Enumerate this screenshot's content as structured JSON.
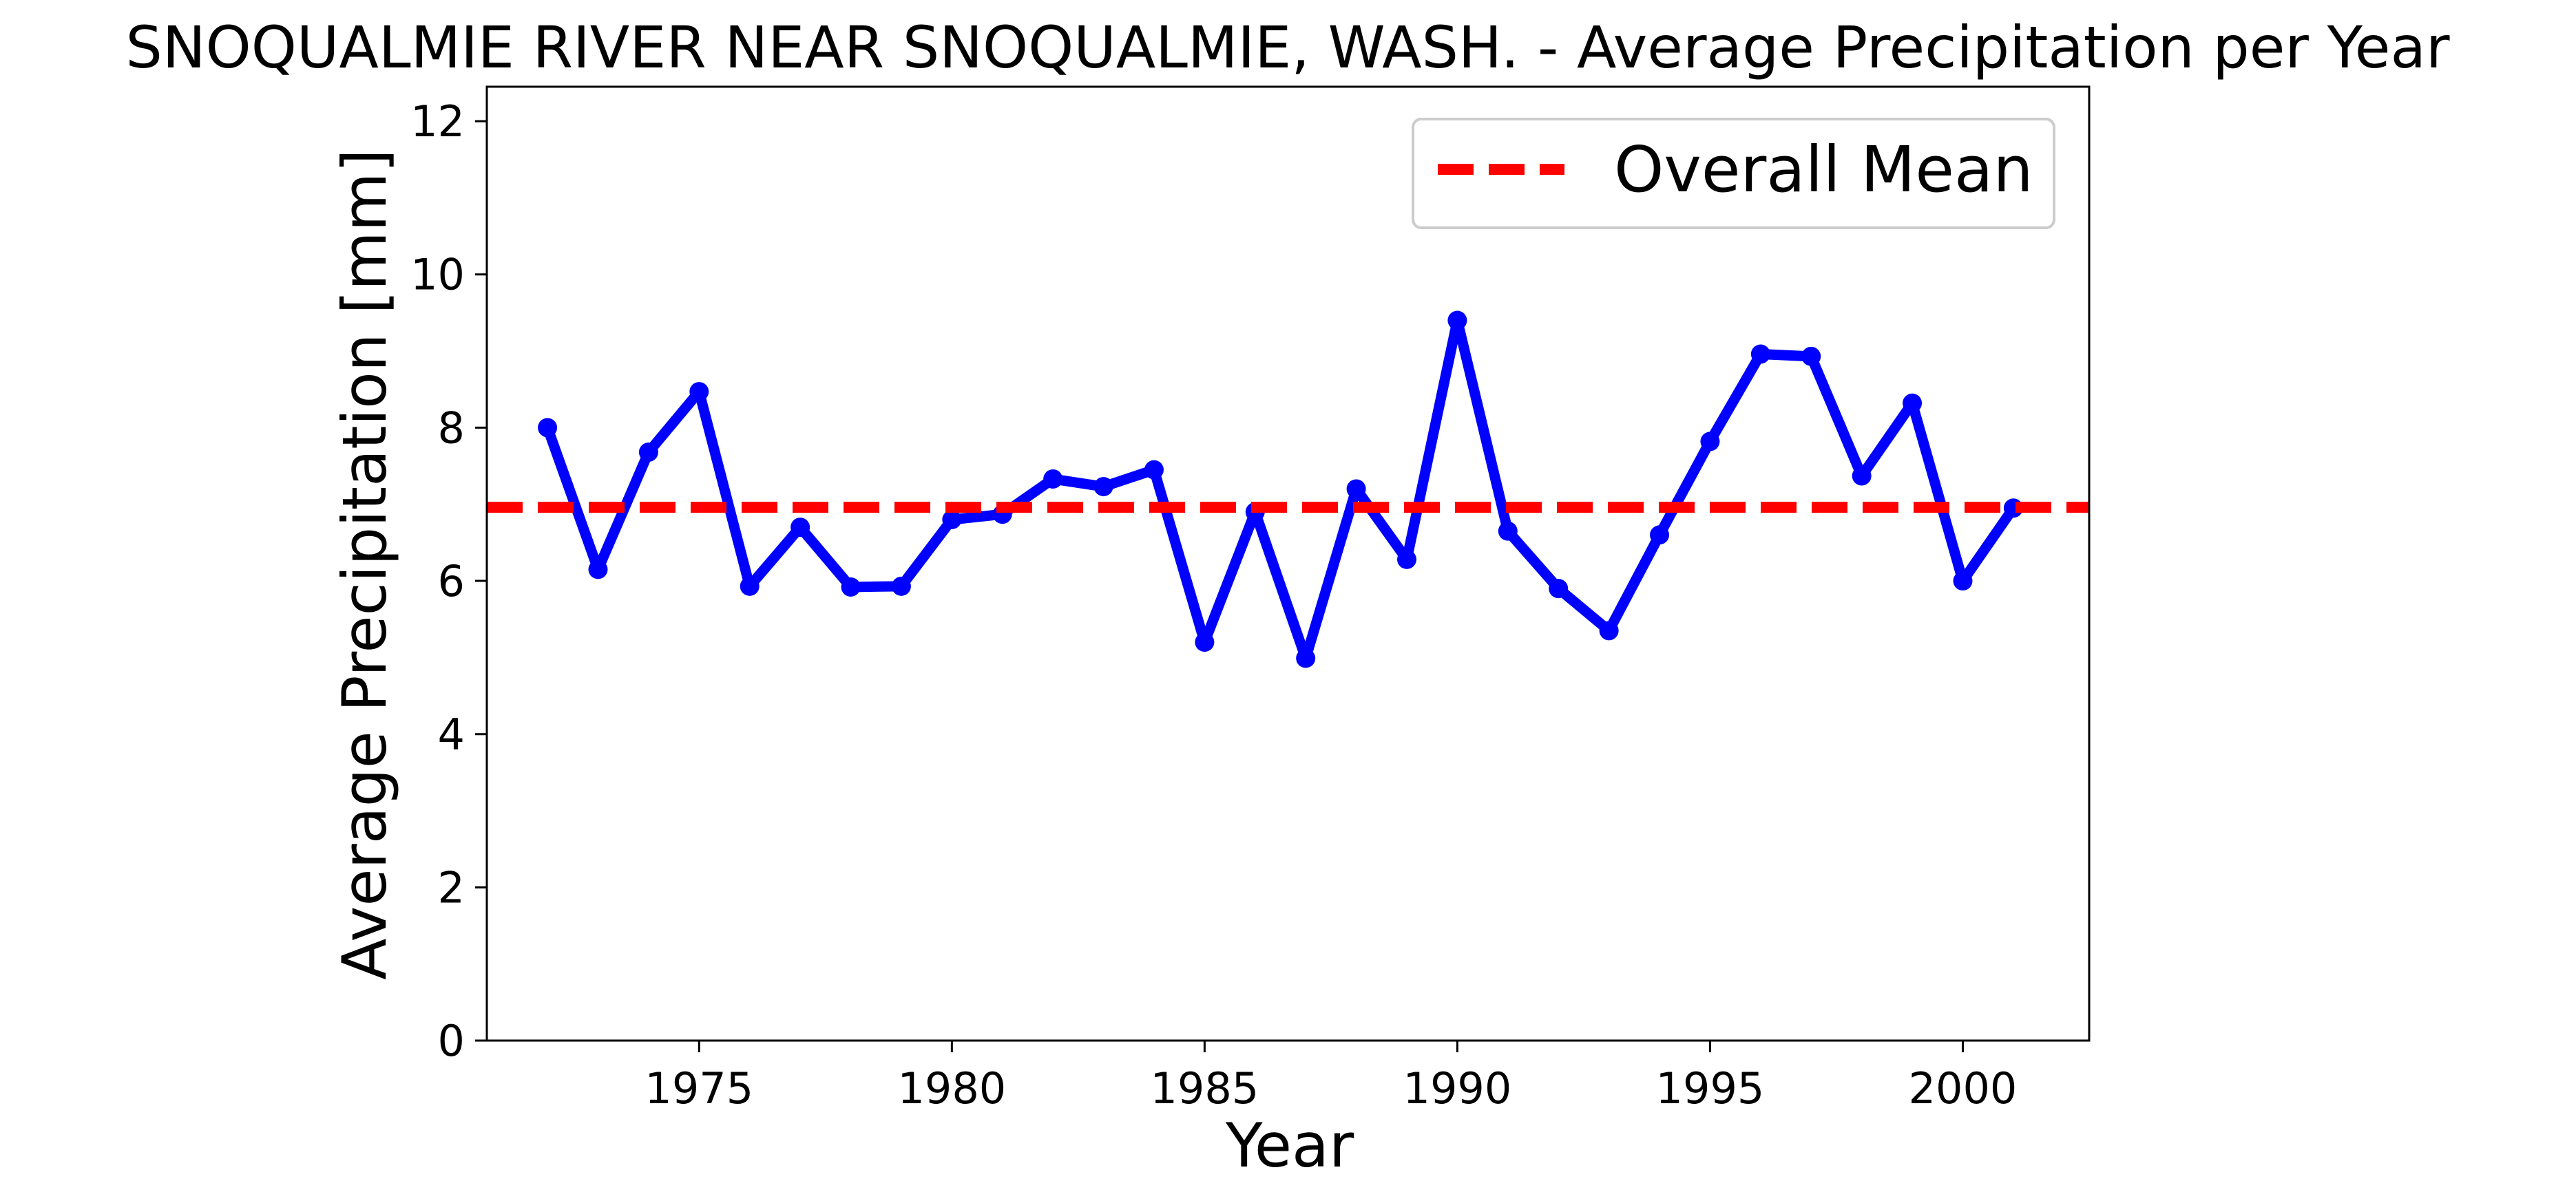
{
  "chart_data": {
    "type": "line",
    "title": "SNOQUALMIE RIVER NEAR SNOQUALMIE, WASH. - Average Precipitation per Year",
    "xlabel": "Year",
    "ylabel": "Average Precipitation [mm]",
    "xlim": [
      1970.8,
      2002.5
    ],
    "ylim": [
      0,
      12.45
    ],
    "x_ticks": [
      1975,
      1980,
      1985,
      1990,
      1995,
      2000
    ],
    "y_ticks": [
      0,
      2,
      4,
      6,
      8,
      10,
      12
    ],
    "grid": false,
    "legend_position": "top-right",
    "legend": [
      "Overall Mean"
    ],
    "series": [
      {
        "color": "#0000ff",
        "x": [
          1972,
          1973,
          1974,
          1975,
          1976,
          1977,
          1978,
          1979,
          1980,
          1981,
          1982,
          1983,
          1984,
          1985,
          1986,
          1987,
          1988,
          1989,
          1990,
          1991,
          1992,
          1993,
          1994,
          1995,
          1996,
          1997,
          1998,
          1999,
          2000,
          2001
        ],
        "y": [
          8.0,
          6.15,
          7.68,
          8.47,
          5.93,
          6.7,
          5.92,
          5.93,
          6.8,
          6.87,
          7.33,
          7.23,
          7.45,
          5.2,
          6.9,
          4.99,
          7.2,
          6.28,
          9.4,
          6.65,
          5.9,
          5.35,
          6.6,
          7.82,
          8.96,
          8.93,
          7.37,
          8.32,
          6.0,
          6.95
        ]
      }
    ],
    "reference_lines": [
      {
        "name": "Overall Mean",
        "y": 6.96,
        "color": "#ff0000",
        "style": "dashed"
      }
    ]
  }
}
